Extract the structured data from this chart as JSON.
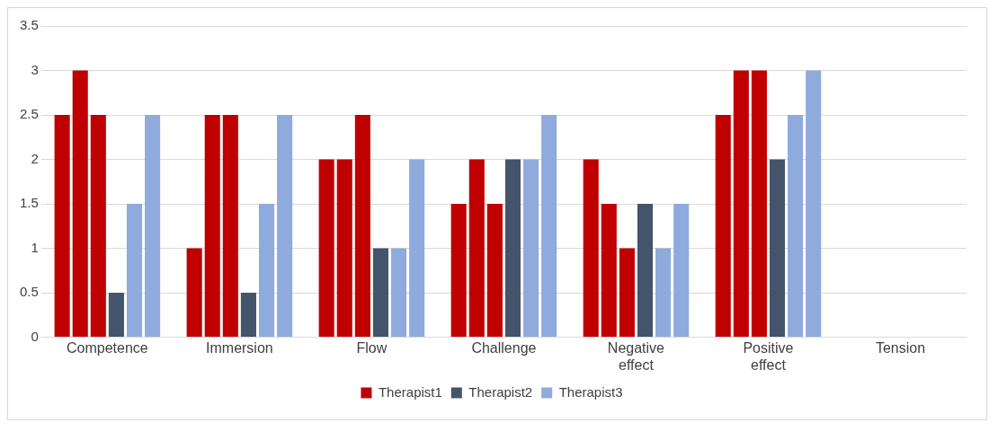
{
  "chart_data": {
    "type": "bar",
    "categories": [
      "Competence",
      "Immersion",
      "Flow",
      "Challenge",
      "Negative effect",
      "Positive effect",
      "Tension"
    ],
    "series": [
      {
        "name": "Therapist1",
        "color": "#c00000",
        "values": [
          2.5,
          1,
          2,
          1.5,
          2,
          2.5,
          0
        ]
      },
      {
        "color": "#c00000",
        "values": [
          3,
          2.5,
          2,
          2,
          1.5,
          3,
          0
        ]
      },
      {
        "color": "#c00000",
        "values": [
          2.5,
          2.5,
          2.5,
          1.5,
          1,
          3,
          0
        ]
      },
      {
        "name": "Therapist2",
        "color": "#44546a",
        "values": [
          0.5,
          0.5,
          1,
          2,
          1.5,
          2,
          0
        ]
      },
      {
        "name": "Therapist3",
        "color": "#8faadc",
        "values": [
          1.5,
          1.5,
          1,
          2,
          1,
          2.5,
          0
        ]
      },
      {
        "color": "#8faadc",
        "values": [
          2.5,
          2.5,
          2,
          2.5,
          1.5,
          3,
          0
        ]
      }
    ],
    "ylim": [
      0,
      3.5
    ],
    "yticks": [
      0,
      0.5,
      1,
      1.5,
      2,
      2.5,
      3,
      3.5
    ],
    "grid": "y",
    "legend": "bottom"
  }
}
